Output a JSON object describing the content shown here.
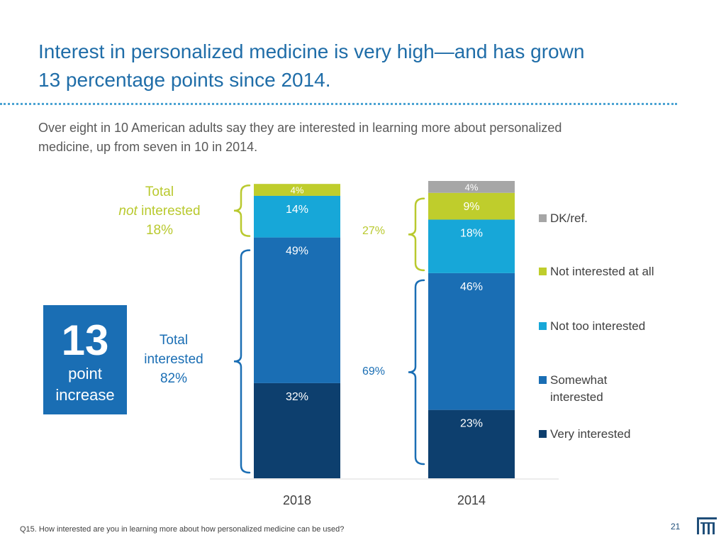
{
  "title": {
    "line1": "Interest in personalized medicine is very high—and has grown",
    "line2": "13 percentage points since 2014."
  },
  "subtitle": {
    "line1": "Over eight in 10 American adults say they are interested in learning more about personalized",
    "line2": "medicine, up from seven in 10 in 2014."
  },
  "annotations": {
    "not_interested": {
      "line1": "Total",
      "line2_em": "not",
      "line2_rest": " interested",
      "line3": "18%"
    },
    "interested": {
      "line1": "Total",
      "line2": "interested",
      "line3": "82%"
    },
    "p2014_not": "27%",
    "p2014_int": "69%",
    "increase": {
      "number": "13",
      "line1": "point",
      "line2": "increase"
    }
  },
  "chart_data": {
    "type": "bar",
    "stacked": true,
    "categories": [
      "2018",
      "2014"
    ],
    "ylim": [
      0,
      100
    ],
    "grid": false,
    "legend_position": "right",
    "series": [
      {
        "name": "Very interested",
        "values": [
          32,
          23
        ],
        "labels": [
          "32%",
          "23%"
        ],
        "color": "#0d3f6e"
      },
      {
        "name": "Somewhat interested",
        "values": [
          49,
          46
        ],
        "labels": [
          "49%",
          "46%"
        ],
        "color": "#1a6eb4"
      },
      {
        "name": "Not too interested",
        "values": [
          14,
          18
        ],
        "labels": [
          "14%",
          "18%"
        ],
        "color": "#17a7d8"
      },
      {
        "name": "Not interested at all",
        "values": [
          4,
          9
        ],
        "labels": [
          "4%",
          "9%"
        ],
        "color": "#bfcd2c"
      },
      {
        "name": "DK/ref.",
        "values": [
          null,
          4
        ],
        "labels": [
          "",
          "4%"
        ],
        "color": "#a6a6a6"
      }
    ]
  },
  "legend": [
    {
      "line1": "DK/ref.",
      "line2": "",
      "color": "#a6a6a6"
    },
    {
      "line1": "Not interested at all",
      "line2": "",
      "color": "#bfcd2c"
    },
    {
      "line1": "Not too interested",
      "line2": "",
      "color": "#17a7d8"
    },
    {
      "line1": "Somewhat",
      "line2": "interested",
      "color": "#1a6eb4"
    },
    {
      "line1": "Very interested",
      "line2": "",
      "color": "#0d3f6e"
    }
  ],
  "footnote": "Q15. How interested are you in learning more about how personalized medicine can be used?",
  "page_number": "21",
  "logo_icon": "company-logo-icon"
}
